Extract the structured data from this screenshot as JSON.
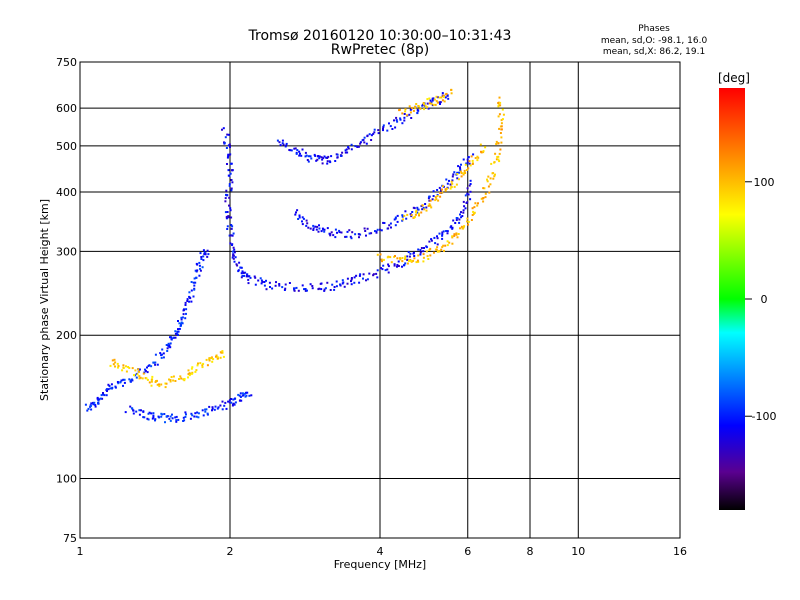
{
  "chart_data": {
    "type": "scatter",
    "title": "Tromsø 20160120 10:30:00–10:31:43",
    "subtitle": "RwPretec (8p)",
    "xlabel": "Frequency [MHz]",
    "ylabel": "Stationary phase Virtual Height [km]",
    "x_scale": "log",
    "y_scale": "log",
    "xlim": [
      1,
      16
    ],
    "ylim": [
      75,
      750
    ],
    "x_ticks": [
      1,
      2,
      4,
      6,
      8,
      10,
      16
    ],
    "y_ticks": [
      75,
      100,
      200,
      300,
      400,
      500,
      600,
      750
    ],
    "grid": true,
    "stats": {
      "heading": "Phases",
      "o_line": "mean, sd,O: -98.1, 16.0",
      "x_line": "mean, sd,X: 86.2, 19.1"
    },
    "colorbar": {
      "label": "[deg]",
      "ticks": [
        {
          "value": 100,
          "label": "100"
        },
        {
          "value": 0,
          "label": "0"
        },
        {
          "value": -100,
          "label": "-100"
        }
      ],
      "range": [
        -180,
        180
      ]
    },
    "traces": [
      {
        "points": [
          [
            1.03,
            140
          ],
          [
            1.08,
            145
          ],
          [
            1.12,
            152
          ],
          [
            1.2,
            158
          ],
          [
            1.3,
            165
          ],
          [
            1.4,
            175
          ],
          [
            1.5,
            188
          ],
          [
            1.55,
            200
          ],
          [
            1.6,
            215
          ],
          [
            1.65,
            235
          ],
          [
            1.7,
            260
          ],
          [
            1.75,
            285
          ],
          [
            1.8,
            305
          ]
        ],
        "phase": -100
      },
      {
        "points": [
          [
            1.25,
            140
          ],
          [
            1.35,
            136
          ],
          [
            1.45,
            134
          ],
          [
            1.55,
            134
          ],
          [
            1.7,
            136
          ],
          [
            1.85,
            140
          ],
          [
            2.0,
            144
          ],
          [
            2.1,
            148
          ],
          [
            2.2,
            152
          ]
        ],
        "phase": -100
      },
      {
        "points": [
          [
            1.15,
            175
          ],
          [
            1.25,
            170
          ],
          [
            1.35,
            162
          ],
          [
            1.45,
            158
          ],
          [
            1.6,
            162
          ],
          [
            1.7,
            170
          ],
          [
            1.85,
            178
          ],
          [
            1.95,
            182
          ]
        ],
        "phase": 95
      },
      {
        "points": [
          [
            1.95,
            540
          ],
          [
            2.0,
            480
          ],
          [
            2.0,
            420
          ],
          [
            1.98,
            370
          ],
          [
            2.0,
            330
          ],
          [
            2.05,
            290
          ],
          [
            2.1,
            270
          ],
          [
            2.2,
            262
          ],
          [
            2.4,
            255
          ],
          [
            2.7,
            252
          ],
          [
            3.0,
            252
          ],
          [
            3.3,
            255
          ],
          [
            3.6,
            262
          ],
          [
            4.0,
            272
          ],
          [
            4.4,
            284
          ],
          [
            4.8,
            300
          ],
          [
            5.2,
            318
          ],
          [
            5.6,
            340
          ],
          [
            5.9,
            370
          ],
          [
            6.1,
            420
          ]
        ],
        "phase": -110
      },
      {
        "points": [
          [
            4.0,
            292
          ],
          [
            4.4,
            288
          ],
          [
            4.8,
            290
          ],
          [
            5.2,
            300
          ],
          [
            5.6,
            318
          ],
          [
            6.0,
            345
          ],
          [
            6.4,
            385
          ],
          [
            6.7,
            430
          ],
          [
            6.9,
            490
          ],
          [
            7.0,
            560
          ],
          [
            7.0,
            630
          ]
        ],
        "phase": 100
      },
      {
        "points": [
          [
            2.5,
            505
          ],
          [
            2.7,
            490
          ],
          [
            2.9,
            470
          ],
          [
            3.1,
            465
          ],
          [
            3.3,
            475
          ],
          [
            3.6,
            500
          ],
          [
            3.9,
            530
          ],
          [
            4.3,
            560
          ],
          [
            4.7,
            590
          ],
          [
            5.1,
            615
          ],
          [
            5.5,
            640
          ]
        ],
        "phase": -110
      },
      {
        "points": [
          [
            4.4,
            585
          ],
          [
            4.8,
            605
          ],
          [
            5.2,
            625
          ],
          [
            5.6,
            645
          ]
        ],
        "phase": 100
      },
      {
        "points": [
          [
            2.7,
            360
          ],
          [
            2.9,
            340
          ],
          [
            3.1,
            330
          ],
          [
            3.4,
            325
          ],
          [
            3.8,
            330
          ],
          [
            4.2,
            342
          ],
          [
            4.6,
            360
          ],
          [
            5.0,
            382
          ],
          [
            5.4,
            410
          ],
          [
            5.8,
            445
          ],
          [
            6.1,
            480
          ]
        ],
        "phase": -110
      },
      {
        "points": [
          [
            4.5,
            350
          ],
          [
            4.9,
            370
          ],
          [
            5.3,
            395
          ],
          [
            5.7,
            425
          ],
          [
            6.1,
            460
          ],
          [
            6.5,
            500
          ]
        ],
        "phase": 100
      }
    ]
  }
}
